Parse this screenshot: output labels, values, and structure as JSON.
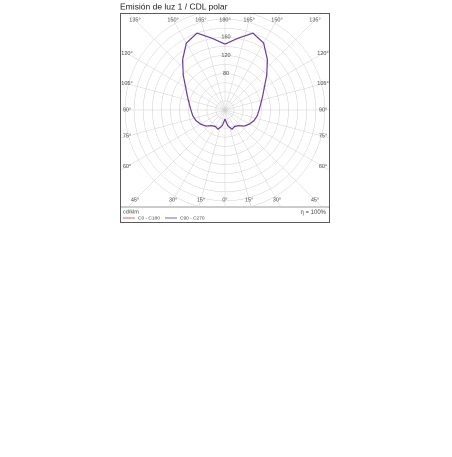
{
  "chart_data": {
    "type": "polar",
    "title": "Emisión de luz 1 / CDL polar",
    "unit": "cd/klm",
    "efficiency": "η = 100%",
    "angles": [
      0,
      10,
      20,
      30,
      40,
      50,
      60,
      70,
      80,
      90,
      100,
      110,
      120,
      130,
      140,
      150,
      160,
      170,
      180
    ],
    "series": [
      {
        "name": "C0 - C180",
        "color": "#d04040",
        "values": [
          20,
          35,
          45,
          42,
          45,
          55,
          62,
          68,
          72,
          75,
          80,
          88,
          100,
          120,
          145,
          170,
          180,
          160,
          145
        ]
      },
      {
        "name": "C90 - C270",
        "color": "#4a3cc0",
        "values": [
          20,
          35,
          45,
          42,
          45,
          55,
          62,
          68,
          72,
          75,
          80,
          88,
          100,
          120,
          145,
          170,
          180,
          160,
          145
        ]
      }
    ],
    "rlim": [
      0,
      220
    ],
    "rgrid": [
      20,
      40,
      60,
      80,
      100,
      120,
      140,
      160,
      180,
      200,
      220
    ],
    "rticks": [
      80,
      120,
      160
    ],
    "angle_ticks": [
      {
        "value": 0,
        "label": "0°"
      },
      {
        "value": 15,
        "label": "15°"
      },
      {
        "value": 30,
        "label": "30°"
      },
      {
        "value": 45,
        "label": "45°"
      },
      {
        "value": 60,
        "label": "60°"
      },
      {
        "value": 75,
        "label": "75°"
      },
      {
        "value": 90,
        "label": "90°"
      },
      {
        "value": 105,
        "label": "105°"
      },
      {
        "value": 120,
        "label": "120°"
      },
      {
        "value": 135,
        "label": "135°"
      },
      {
        "value": 150,
        "label": "150°"
      },
      {
        "value": 165,
        "label": "165°"
      },
      {
        "value": 180,
        "label": "180°"
      }
    ]
  }
}
